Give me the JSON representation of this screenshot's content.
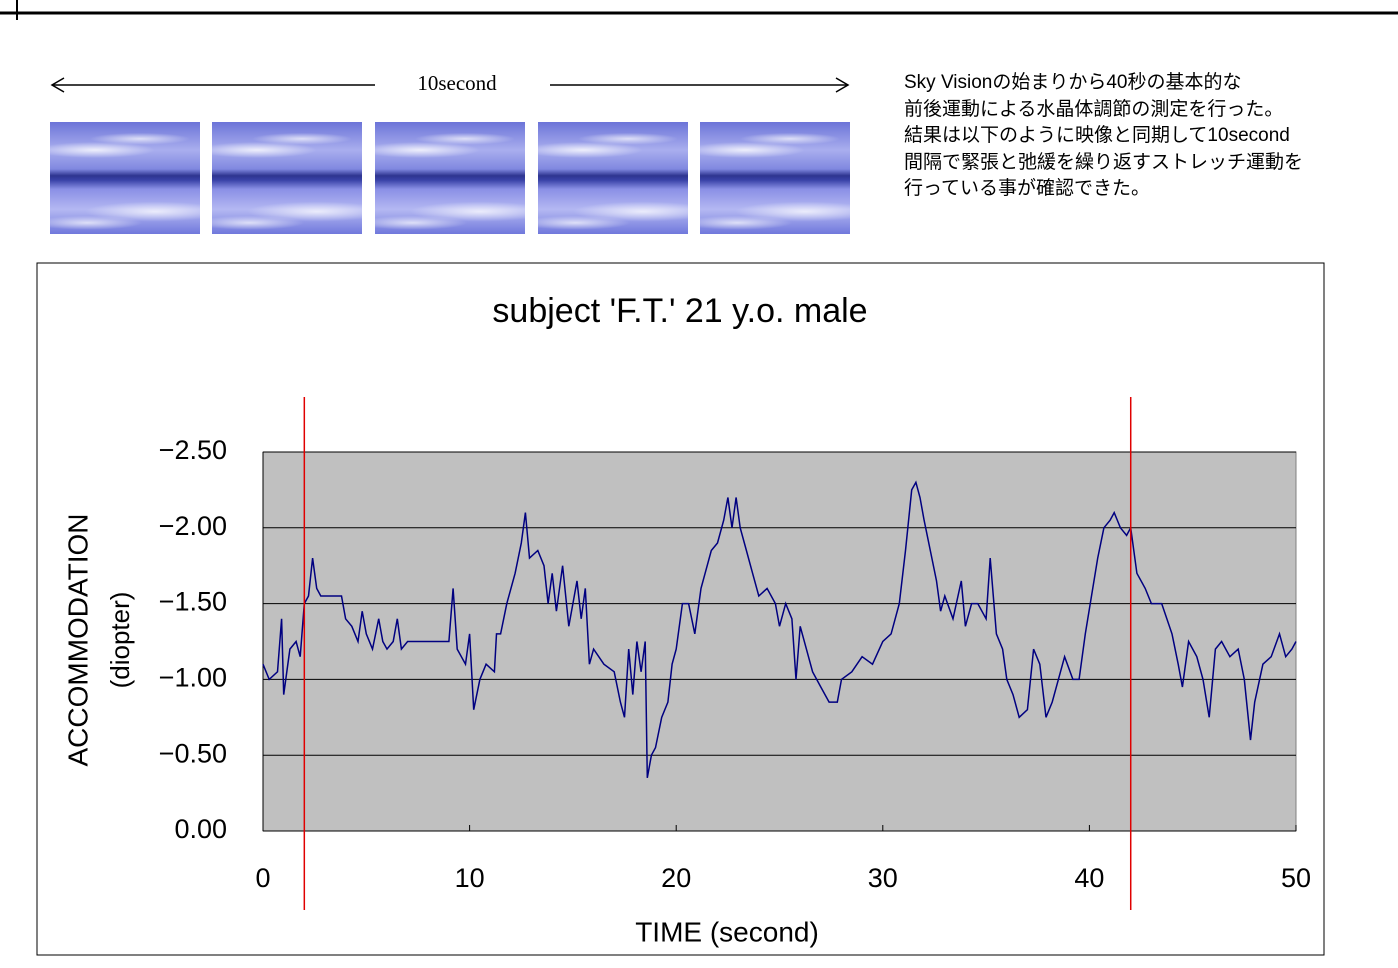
{
  "header": {
    "span_label": "10second",
    "description": [
      "Sky Visionの始まりから40秒の基本的な",
      "前後運動による水晶体調節の測定を行った。",
      "結果は以下のように映像と同期して10second",
      "間隔で緊張と弛緩を繰り返すストレッチ運動を",
      "行っている事が確認できた。"
    ]
  },
  "chart_data": {
    "type": "line",
    "title": "subject 'F.T.' 21 y.o. male",
    "xlabel": "TIME (second)",
    "ylabel": [
      "ACCOMMODATION",
      "(diopter)"
    ],
    "xlim": [
      0,
      50
    ],
    "xticks": [
      0,
      10,
      20,
      30,
      40,
      50
    ],
    "ylim": [
      0,
      -2.5
    ],
    "yticks": [
      {
        "value": 0,
        "label": "0.00"
      },
      {
        "value": -0.5,
        "label": "−0.50"
      },
      {
        "value": -1,
        "label": "−1.00"
      },
      {
        "value": -1.5,
        "label": "−1.50"
      },
      {
        "value": -2,
        "label": "−2.00"
      },
      {
        "value": -2.5,
        "label": "−2.50"
      }
    ],
    "grid": true,
    "color": "#000080",
    "background": "#c0c0c0",
    "vlines": [
      2,
      42
    ],
    "vline_color": "#e00000",
    "x": [
      0,
      0.3,
      0.7,
      0.9,
      1.0,
      1.3,
      1.6,
      1.8,
      2.0,
      2.2,
      2.4,
      2.6,
      2.8,
      3.5,
      3.8,
      4.0,
      4.3,
      4.6,
      4.8,
      5.0,
      5.3,
      5.6,
      5.8,
      6.0,
      6.3,
      6.5,
      6.7,
      7.0,
      9.0,
      9.2,
      9.4,
      9.8,
      10.0,
      10.2,
      10.5,
      10.8,
      11.2,
      11.3,
      11.5,
      11.8,
      12.2,
      12.5,
      12.7,
      12.9,
      13.3,
      13.6,
      13.8,
      14.0,
      14.2,
      14.5,
      14.8,
      15.0,
      15.2,
      15.4,
      15.6,
      15.8,
      16.0,
      16.5,
      17.0,
      17.3,
      17.5,
      17.7,
      17.9,
      18.1,
      18.3,
      18.5,
      18.6,
      18.8,
      19.0,
      19.3,
      19.6,
      19.8,
      20.0,
      20.3,
      20.6,
      20.9,
      21.2,
      21.4,
      21.7,
      22.0,
      22.3,
      22.5,
      22.7,
      22.9,
      23.1,
      23.4,
      23.7,
      24.0,
      24.4,
      24.8,
      25.0,
      25.3,
      25.6,
      25.8,
      26.0,
      26.3,
      26.6,
      27.0,
      27.4,
      27.8,
      28.0,
      28.5,
      29.0,
      29.5,
      30.0,
      30.4,
      30.8,
      31.1,
      31.4,
      31.6,
      31.8,
      32.0,
      32.3,
      32.6,
      32.8,
      33.0,
      33.4,
      33.8,
      34.0,
      34.3,
      34.6,
      35.0,
      35.2,
      35.5,
      35.8,
      36.0,
      36.3,
      36.6,
      37.0,
      37.3,
      37.6,
      37.9,
      38.2,
      38.5,
      38.8,
      39.2,
      39.5,
      39.8,
      40.1,
      40.4,
      40.7,
      41.0,
      41.2,
      41.5,
      41.8,
      42.0,
      42.3,
      42.7,
      43.0,
      43.5,
      44.0,
      44.3,
      44.5,
      44.8,
      45.2,
      45.5,
      45.8,
      46.1,
      46.4,
      46.8,
      47.2,
      47.5,
      47.8,
      48.0,
      48.4,
      48.8,
      49.2,
      49.5,
      49.8,
      50.0
    ],
    "values": [
      -1.1,
      -1.0,
      -1.05,
      -1.4,
      -0.9,
      -1.2,
      -1.25,
      -1.15,
      -1.5,
      -1.55,
      -1.8,
      -1.6,
      -1.55,
      -1.55,
      -1.55,
      -1.4,
      -1.35,
      -1.25,
      -1.45,
      -1.3,
      -1.2,
      -1.4,
      -1.25,
      -1.2,
      -1.25,
      -1.4,
      -1.2,
      -1.25,
      -1.25,
      -1.6,
      -1.2,
      -1.1,
      -1.3,
      -0.8,
      -1.0,
      -1.1,
      -1.05,
      -1.3,
      -1.3,
      -1.5,
      -1.7,
      -1.9,
      -2.1,
      -1.8,
      -1.85,
      -1.75,
      -1.5,
      -1.7,
      -1.45,
      -1.75,
      -1.35,
      -1.5,
      -1.65,
      -1.4,
      -1.6,
      -1.1,
      -1.2,
      -1.1,
      -1.05,
      -0.85,
      -0.75,
      -1.2,
      -0.9,
      -1.25,
      -1.05,
      -1.25,
      -0.35,
      -0.5,
      -0.55,
      -0.75,
      -0.85,
      -1.1,
      -1.2,
      -1.5,
      -1.5,
      -1.3,
      -1.6,
      -1.7,
      -1.85,
      -1.9,
      -2.05,
      -2.2,
      -2.0,
      -2.2,
      -2.0,
      -1.85,
      -1.7,
      -1.55,
      -1.6,
      -1.5,
      -1.35,
      -1.5,
      -1.4,
      -1.0,
      -1.35,
      -1.2,
      -1.05,
      -0.95,
      -0.85,
      -0.85,
      -1.0,
      -1.05,
      -1.15,
      -1.1,
      -1.25,
      -1.3,
      -1.5,
      -1.85,
      -2.25,
      -2.3,
      -2.2,
      -2.05,
      -1.85,
      -1.65,
      -1.45,
      -1.55,
      -1.4,
      -1.65,
      -1.35,
      -1.5,
      -1.5,
      -1.4,
      -1.8,
      -1.3,
      -1.2,
      -1.0,
      -0.9,
      -0.75,
      -0.8,
      -1.2,
      -1.1,
      -0.75,
      -0.85,
      -1.0,
      -1.15,
      -1.0,
      -1.0,
      -1.3,
      -1.55,
      -1.8,
      -2.0,
      -2.05,
      -2.1,
      -2.0,
      -1.95,
      -2.0,
      -1.7,
      -1.6,
      -1.5,
      -1.5,
      -1.3,
      -1.1,
      -0.95,
      -1.25,
      -1.15,
      -1.0,
      -0.75,
      -1.2,
      -1.25,
      -1.15,
      -1.2,
      -1.0,
      -0.6,
      -0.85,
      -1.1,
      -1.15,
      -1.3,
      -1.15,
      -1.2,
      -1.25
    ]
  }
}
